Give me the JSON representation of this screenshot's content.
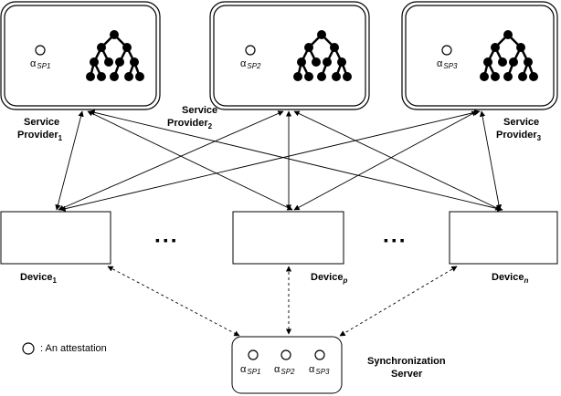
{
  "service_providers": [
    {
      "label": "Service",
      "label2": "Provider",
      "sub": "1",
      "alpha": "α",
      "alpha_sub": "SP1"
    },
    {
      "label": "Service",
      "label2": "Provider",
      "sub": "2",
      "alpha": "α",
      "alpha_sub": "SP2"
    },
    {
      "label": "Service",
      "label2": "Provider",
      "sub": "3",
      "alpha": "α",
      "alpha_sub": "SP3"
    }
  ],
  "devices": [
    {
      "label": "Device",
      "sub": "1"
    },
    {
      "label": "Device",
      "sub": "p"
    },
    {
      "label": "Device",
      "sub": "n"
    }
  ],
  "ellipsis": "▪ ▪ ▪",
  "legend": {
    "text": ": An attestation"
  },
  "sync_server": {
    "label": "Synchronization",
    "label2": "Server",
    "alphas": [
      {
        "alpha": "α",
        "sub": "SP1"
      },
      {
        "alpha": "α",
        "sub": "SP2"
      },
      {
        "alpha": "α",
        "sub": "SP3"
      }
    ]
  }
}
